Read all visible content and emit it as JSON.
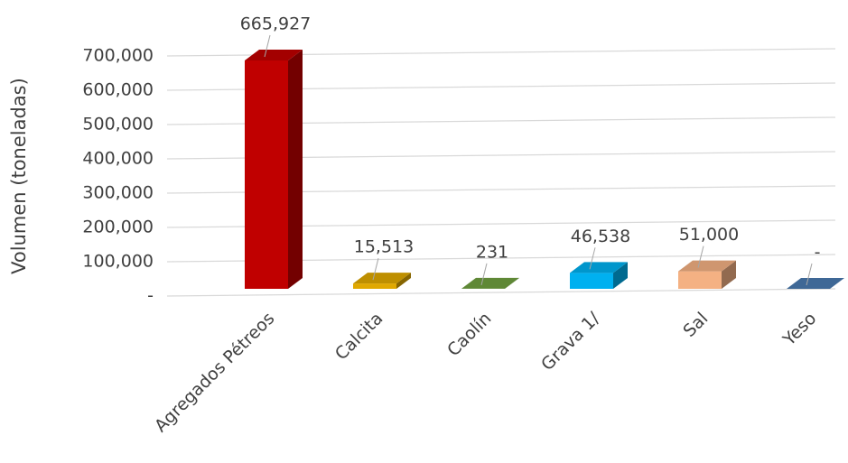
{
  "chart_data": {
    "type": "bar3d",
    "y_label": "Volumen (toneladas)",
    "categories": [
      "Agregados Pétreos",
      "Calcita",
      "Caolín",
      "Grava 1/",
      "Sal",
      "Yeso"
    ],
    "values": [
      665927,
      15513,
      231,
      46538,
      51000,
      0
    ],
    "value_labels": [
      "665,927",
      "15,513",
      "231",
      "46,538",
      "51,000",
      "-"
    ],
    "colors": [
      "#c00000",
      "#e0a800",
      "#70a040",
      "#00b0f0",
      "#f4b183",
      "#4a7ab0"
    ],
    "ylim": [
      0,
      700000
    ],
    "yticks": [
      {
        "value": 0,
        "label": "-"
      },
      {
        "value": 100000,
        "label": "100,000"
      },
      {
        "value": 200000,
        "label": "200,000"
      },
      {
        "value": 300000,
        "label": "300,000"
      },
      {
        "value": 400000,
        "label": "400,000"
      },
      {
        "value": 500000,
        "label": "500,000"
      },
      {
        "value": 600000,
        "label": "600,000"
      },
      {
        "value": 700000,
        "label": "700,000"
      }
    ],
    "grid": true
  }
}
